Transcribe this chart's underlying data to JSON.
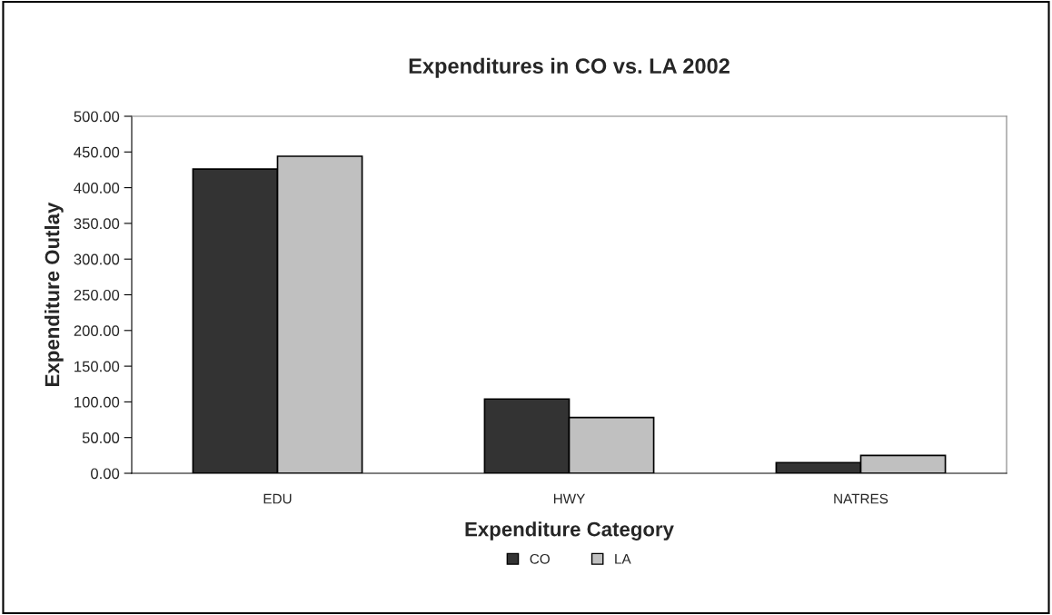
{
  "chart_data": {
    "type": "bar",
    "title": "Expenditures in CO vs. LA 2002",
    "xlabel": "Expenditure Category",
    "ylabel": "Expenditure Outlay",
    "categories": [
      "EDU",
      "HWY",
      "NATRES"
    ],
    "series": [
      {
        "name": "CO",
        "color": "#333333",
        "values": [
          426,
          104,
          15
        ]
      },
      {
        "name": "LA",
        "color": "#c0c0c0",
        "values": [
          444,
          78,
          25
        ]
      }
    ],
    "ylim": [
      0,
      500
    ],
    "yticks": [
      {
        "value": 0,
        "label": "0.00"
      },
      {
        "value": 50,
        "label": "50.00"
      },
      {
        "value": 100,
        "label": "100.00"
      },
      {
        "value": 150,
        "label": "150.00"
      },
      {
        "value": 200,
        "label": "200.00"
      },
      {
        "value": 250,
        "label": "250.00"
      },
      {
        "value": 300,
        "label": "300.00"
      },
      {
        "value": 350,
        "label": "350.00"
      },
      {
        "value": 400,
        "label": "400.00"
      },
      {
        "value": 450,
        "label": "450.00"
      },
      {
        "value": 500,
        "label": "500.00"
      }
    ],
    "grid": false,
    "legend": "bottom"
  }
}
